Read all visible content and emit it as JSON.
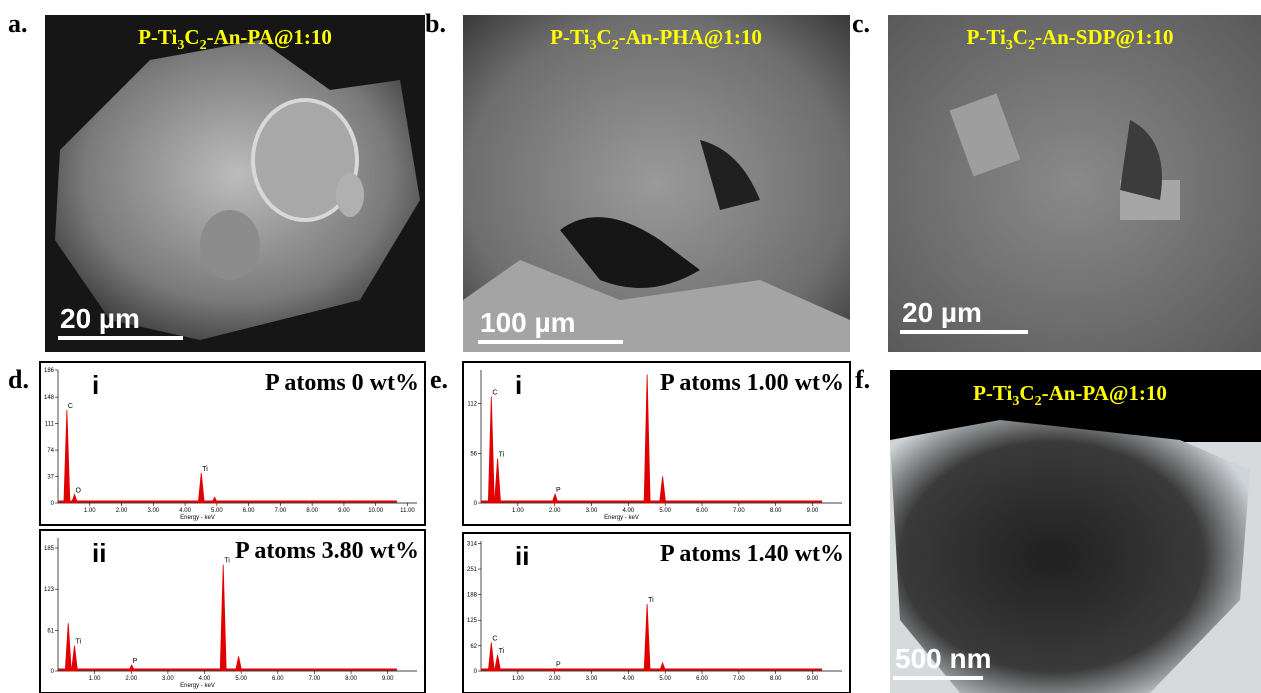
{
  "panels": [
    {
      "letter": "a.",
      "title": [
        "P-Ti",
        "3",
        "C",
        "2",
        "-An-PA@1:10"
      ],
      "scale_bar": "20 µm"
    },
    {
      "letter": "b.",
      "title": [
        "P-Ti",
        "3",
        "C",
        "2",
        "-An-PHA@1:10"
      ],
      "scale_bar": "100 µm"
    },
    {
      "letter": "c.",
      "title": [
        "P-Ti",
        "3",
        "C",
        "2",
        "-An-SDP@1:10"
      ],
      "scale_bar": "20 µm"
    },
    {
      "letter": "f.",
      "title": [
        "P-Ti",
        "3",
        "C",
        "2",
        "-An-PA@1:10"
      ],
      "scale_bar": "500 nm"
    }
  ],
  "spectra_panels": [
    {
      "letter": "d.",
      "spectra": [
        {
          "index": "i",
          "p_label": "P atoms 0 wt%",
          "x_label": "Energy - keV",
          "xlim": [
            0,
            11.3
          ],
          "ylim": [
            0,
            186
          ],
          "xticks": [
            {
              "value": 1,
              "label": "1.00"
            },
            {
              "value": 2,
              "label": "2.00"
            },
            {
              "value": 3,
              "label": "3.00"
            },
            {
              "value": 4,
              "label": "4.00"
            },
            {
              "value": 5,
              "label": "5.00"
            },
            {
              "value": 6,
              "label": "6.00"
            },
            {
              "value": 7,
              "label": "7.00"
            },
            {
              "value": 8,
              "label": "8.00"
            },
            {
              "value": 9,
              "label": "9.00"
            },
            {
              "value": 10,
              "label": "10.00"
            },
            {
              "value": 11,
              "label": "11.00"
            }
          ],
          "yticks": [
            0,
            37,
            74,
            111,
            148,
            186
          ],
          "peaks": [
            {
              "x": 0.28,
              "y": 130,
              "label": "C"
            },
            {
              "x": 0.52,
              "y": 12,
              "label": "O"
            },
            {
              "x": 4.51,
              "y": 42,
              "label": "Ti"
            },
            {
              "x": 4.93,
              "y": 8
            }
          ]
        },
        {
          "index": "ii",
          "p_label": "P atoms 3.80 wt%",
          "x_label": "Energy - keV",
          "xlim": [
            0,
            9.8
          ],
          "ylim": [
            0,
            200
          ],
          "xticks": [
            {
              "value": 1,
              "label": "1.00"
            },
            {
              "value": 2,
              "label": "2.00"
            },
            {
              "value": 3,
              "label": "3.00"
            },
            {
              "value": 4,
              "label": "4.00"
            },
            {
              "value": 5,
              "label": "5.00"
            },
            {
              "value": 6,
              "label": "6.00"
            },
            {
              "value": 7,
              "label": "7.00"
            },
            {
              "value": 8,
              "label": "8.00"
            },
            {
              "value": 9,
              "label": "9.00"
            }
          ],
          "yticks": [
            0,
            61,
            123,
            185
          ],
          "peaks": [
            {
              "x": 0.28,
              "y": 72
            },
            {
              "x": 0.45,
              "y": 38,
              "label": "Ti"
            },
            {
              "x": 2.01,
              "y": 9,
              "label": "P"
            },
            {
              "x": 4.51,
              "y": 160,
              "label": "Ti"
            },
            {
              "x": 4.93,
              "y": 22
            }
          ]
        }
      ]
    },
    {
      "letter": "e.",
      "spectra": [
        {
          "index": "i",
          "p_label": "P atoms 1.00 wt%",
          "x_label": "Energy - keV",
          "xlim": [
            0,
            9.8
          ],
          "ylim": [
            0,
            150
          ],
          "xticks": [
            {
              "value": 1,
              "label": "1.00"
            },
            {
              "value": 2,
              "label": "2.00"
            },
            {
              "value": 3,
              "label": "3.00"
            },
            {
              "value": 4,
              "label": "4.00"
            },
            {
              "value": 5,
              "label": "5.00"
            },
            {
              "value": 6,
              "label": "6.00"
            },
            {
              "value": 7,
              "label": "7.00"
            },
            {
              "value": 8,
              "label": "8.00"
            },
            {
              "value": 9,
              "label": "9.00"
            }
          ],
          "yticks": [
            0,
            56,
            112
          ],
          "peaks": [
            {
              "x": 0.28,
              "y": 120,
              "label": "C"
            },
            {
              "x": 0.45,
              "y": 50,
              "label": "Ti"
            },
            {
              "x": 2.01,
              "y": 10,
              "label": "P"
            },
            {
              "x": 4.51,
              "y": 145
            },
            {
              "x": 4.93,
              "y": 30
            }
          ]
        },
        {
          "index": "ii",
          "p_label": "P atoms 1.40 wt%",
          "xlim": [
            0,
            9.8
          ],
          "ylim": [
            0,
            320
          ],
          "xticks": [
            {
              "value": 1,
              "label": "1.00"
            },
            {
              "value": 2,
              "label": "2.00"
            },
            {
              "value": 3,
              "label": "3.00"
            },
            {
              "value": 4,
              "label": "4.00"
            },
            {
              "value": 5,
              "label": "5.00"
            },
            {
              "value": 6,
              "label": "6.00"
            },
            {
              "value": 7,
              "label": "7.00"
            },
            {
              "value": 8,
              "label": "8.00"
            },
            {
              "value": 9,
              "label": "9.00"
            }
          ],
          "yticks": [
            0,
            62,
            125,
            188,
            251,
            314
          ],
          "peaks": [
            {
              "x": 0.28,
              "y": 70,
              "label": "C"
            },
            {
              "x": 0.45,
              "y": 40,
              "label": "Ti"
            },
            {
              "x": 2.01,
              "y": 6,
              "label": "P"
            },
            {
              "x": 4.51,
              "y": 165,
              "label": "Ti"
            },
            {
              "x": 4.93,
              "y": 20
            }
          ]
        }
      ]
    }
  ]
}
